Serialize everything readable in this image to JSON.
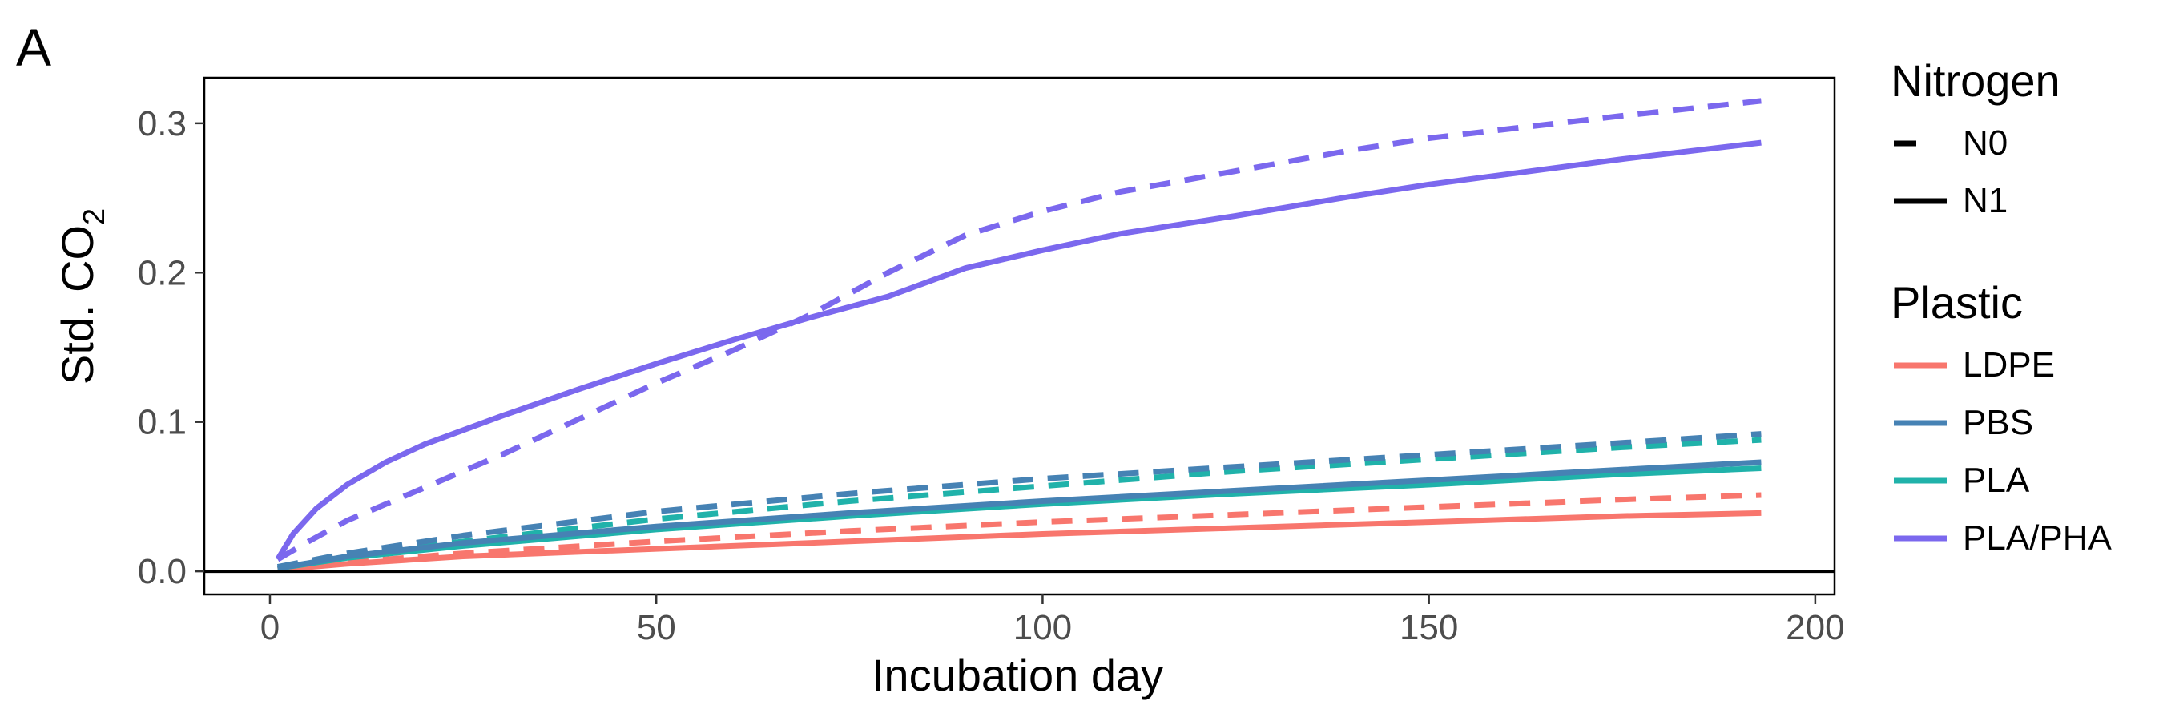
{
  "panel_label": "A",
  "chart_data": {
    "type": "line",
    "title": "",
    "xlabel": "Incubation day",
    "ylabel": "Std. CO2",
    "ylabel_main": "Std. CO",
    "ylabel_subscript": "2",
    "xlim": [
      -8.5,
      202.5
    ],
    "ylim": [
      -0.0155,
      0.3305
    ],
    "x_ticks": [
      0,
      50,
      100,
      150,
      200
    ],
    "x_tick_labels": [
      "0",
      "50",
      "100",
      "150",
      "200"
    ],
    "y_ticks": [
      0.0,
      0.1,
      0.2,
      0.3
    ],
    "y_tick_labels": [
      "0.0",
      "0.1",
      "0.2",
      "0.3"
    ],
    "hline_y": 0,
    "grid": false,
    "legend_position": "right",
    "legends": [
      {
        "title": "Nitrogen",
        "entries": [
          {
            "label": "N0",
            "linetype": "dashed"
          },
          {
            "label": "N1",
            "linetype": "solid"
          }
        ]
      },
      {
        "title": "Plastic",
        "entries": [
          {
            "label": "LDPE",
            "color": "#F8766D"
          },
          {
            "label": "PBS",
            "color": "#4682B4"
          },
          {
            "label": "PLA",
            "color": "#20B2AA"
          },
          {
            "label": "PLA/PHA",
            "color": "#7B68EE"
          }
        ]
      }
    ],
    "series": [
      {
        "plastic": "LDPE",
        "nitrogen": "N1",
        "color": "#F8766D",
        "linetype": "solid",
        "x": [
          1,
          10,
          25,
          50,
          75,
          100,
          125,
          150,
          175,
          193
        ],
        "y": [
          0.001,
          0.005,
          0.01,
          0.015,
          0.02,
          0.025,
          0.029,
          0.033,
          0.037,
          0.039
        ]
      },
      {
        "plastic": "LDPE",
        "nitrogen": "N0",
        "color": "#F8766D",
        "linetype": "dashed",
        "x": [
          1,
          10,
          25,
          50,
          75,
          100,
          125,
          150,
          175,
          193
        ],
        "y": [
          0.001,
          0.006,
          0.012,
          0.02,
          0.027,
          0.033,
          0.038,
          0.043,
          0.048,
          0.051
        ]
      },
      {
        "plastic": "PLA",
        "nitrogen": "N1",
        "color": "#20B2AA",
        "linetype": "solid",
        "x": [
          1,
          10,
          25,
          50,
          75,
          100,
          125,
          150,
          175,
          193
        ],
        "y": [
          0.002,
          0.009,
          0.017,
          0.028,
          0.037,
          0.045,
          0.052,
          0.058,
          0.065,
          0.069
        ]
      },
      {
        "plastic": "PLA",
        "nitrogen": "N0",
        "color": "#20B2AA",
        "linetype": "dashed",
        "x": [
          1,
          10,
          25,
          50,
          75,
          100,
          125,
          150,
          175,
          193
        ],
        "y": [
          0.002,
          0.01,
          0.02,
          0.035,
          0.047,
          0.057,
          0.067,
          0.075,
          0.083,
          0.088
        ]
      },
      {
        "plastic": "PBS",
        "nitrogen": "N1",
        "color": "#4682B4",
        "linetype": "solid",
        "x": [
          1,
          10,
          25,
          50,
          75,
          100,
          125,
          150,
          175,
          193
        ],
        "y": [
          0.002,
          0.01,
          0.019,
          0.03,
          0.039,
          0.047,
          0.054,
          0.061,
          0.068,
          0.073
        ]
      },
      {
        "plastic": "PBS",
        "nitrogen": "N0",
        "color": "#4682B4",
        "linetype": "dashed",
        "x": [
          1,
          10,
          25,
          50,
          75,
          100,
          125,
          150,
          175,
          193
        ],
        "y": [
          0.003,
          0.012,
          0.024,
          0.04,
          0.052,
          0.062,
          0.07,
          0.078,
          0.086,
          0.092
        ]
      },
      {
        "plastic": "PLA/PHA",
        "nitrogen": "N1",
        "color": "#7B68EE",
        "linetype": "solid",
        "x": [
          1,
          3,
          6,
          10,
          15,
          20,
          30,
          40,
          50,
          60,
          70,
          80,
          90,
          100,
          110,
          125,
          140,
          150,
          175,
          193
        ],
        "y": [
          0.008,
          0.025,
          0.042,
          0.058,
          0.073,
          0.085,
          0.104,
          0.122,
          0.139,
          0.155,
          0.17,
          0.184,
          0.203,
          0.215,
          0.226,
          0.238,
          0.251,
          0.259,
          0.276,
          0.287
        ]
      },
      {
        "plastic": "PLA/PHA",
        "nitrogen": "N0",
        "color": "#7B68EE",
        "linetype": "dashed",
        "x": [
          1,
          5,
          10,
          20,
          30,
          40,
          50,
          60,
          70,
          80,
          90,
          100,
          110,
          125,
          140,
          150,
          175,
          193
        ],
        "y": [
          0.008,
          0.02,
          0.034,
          0.056,
          0.078,
          0.102,
          0.126,
          0.148,
          0.172,
          0.2,
          0.225,
          0.241,
          0.254,
          0.268,
          0.282,
          0.29,
          0.305,
          0.315
        ]
      }
    ]
  }
}
